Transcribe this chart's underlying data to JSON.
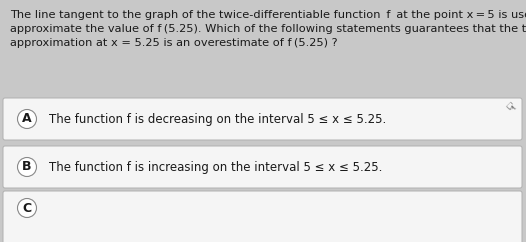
{
  "background_color": "#c8c8c8",
  "box_color": "#f5f5f5",
  "question_text_line1": "The line tangent to the graph of the twice-differentiable function  f  at the point x = 5 is used to",
  "question_text_line2": "approximate the value of f (5.25). Which of the following statements guarantees that the tangent line",
  "question_text_line3": "approximation at x = 5.25 is an overestimate of f (5.25) ?",
  "option_A_label": "A",
  "option_A_text": "The function f is decreasing on the interval 5 ≤ x ≤ 5.25.",
  "option_B_label": "B",
  "option_B_text": "The function f is increasing on the interval 5 ≤ x ≤ 5.25.",
  "option_C_label": "C",
  "question_font_size": 8.2,
  "option_font_size": 8.5,
  "label_font_size": 9.0,
  "border_color": "#b0b0b0",
  "text_color": "#1a1a1a",
  "cursor_color": "#555555"
}
